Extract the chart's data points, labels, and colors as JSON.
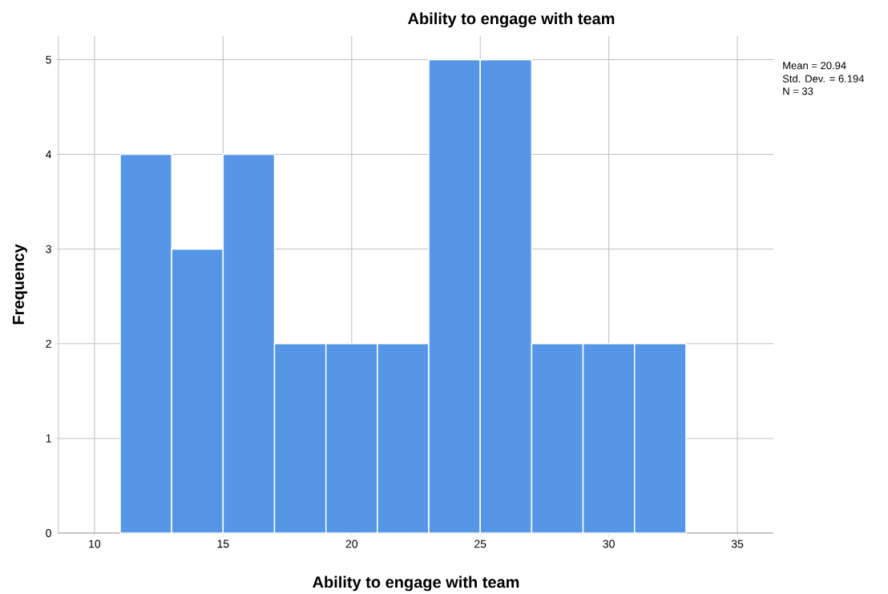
{
  "chart_data": {
    "type": "histogram",
    "title": "Ability to engage with team",
    "xlabel": "Ability to engage with team",
    "ylabel": "Frequency",
    "bins": [
      11,
      13,
      15,
      17,
      19,
      21,
      23,
      25,
      27,
      29,
      31,
      33
    ],
    "values": [
      4,
      3,
      4,
      2,
      2,
      2,
      5,
      5,
      2,
      2,
      2
    ],
    "color": "#5596e6",
    "xlim": [
      8.6,
      36.4
    ],
    "ylim": [
      0,
      5.25
    ],
    "xticks": [
      10,
      15,
      20,
      25,
      30,
      35
    ],
    "yticks": [
      0,
      1,
      2,
      3,
      4,
      5
    ],
    "grid": true,
    "annotations": [
      "Mean = 20.94",
      "Std. Dev. = 6.194",
      "N = 33"
    ]
  }
}
